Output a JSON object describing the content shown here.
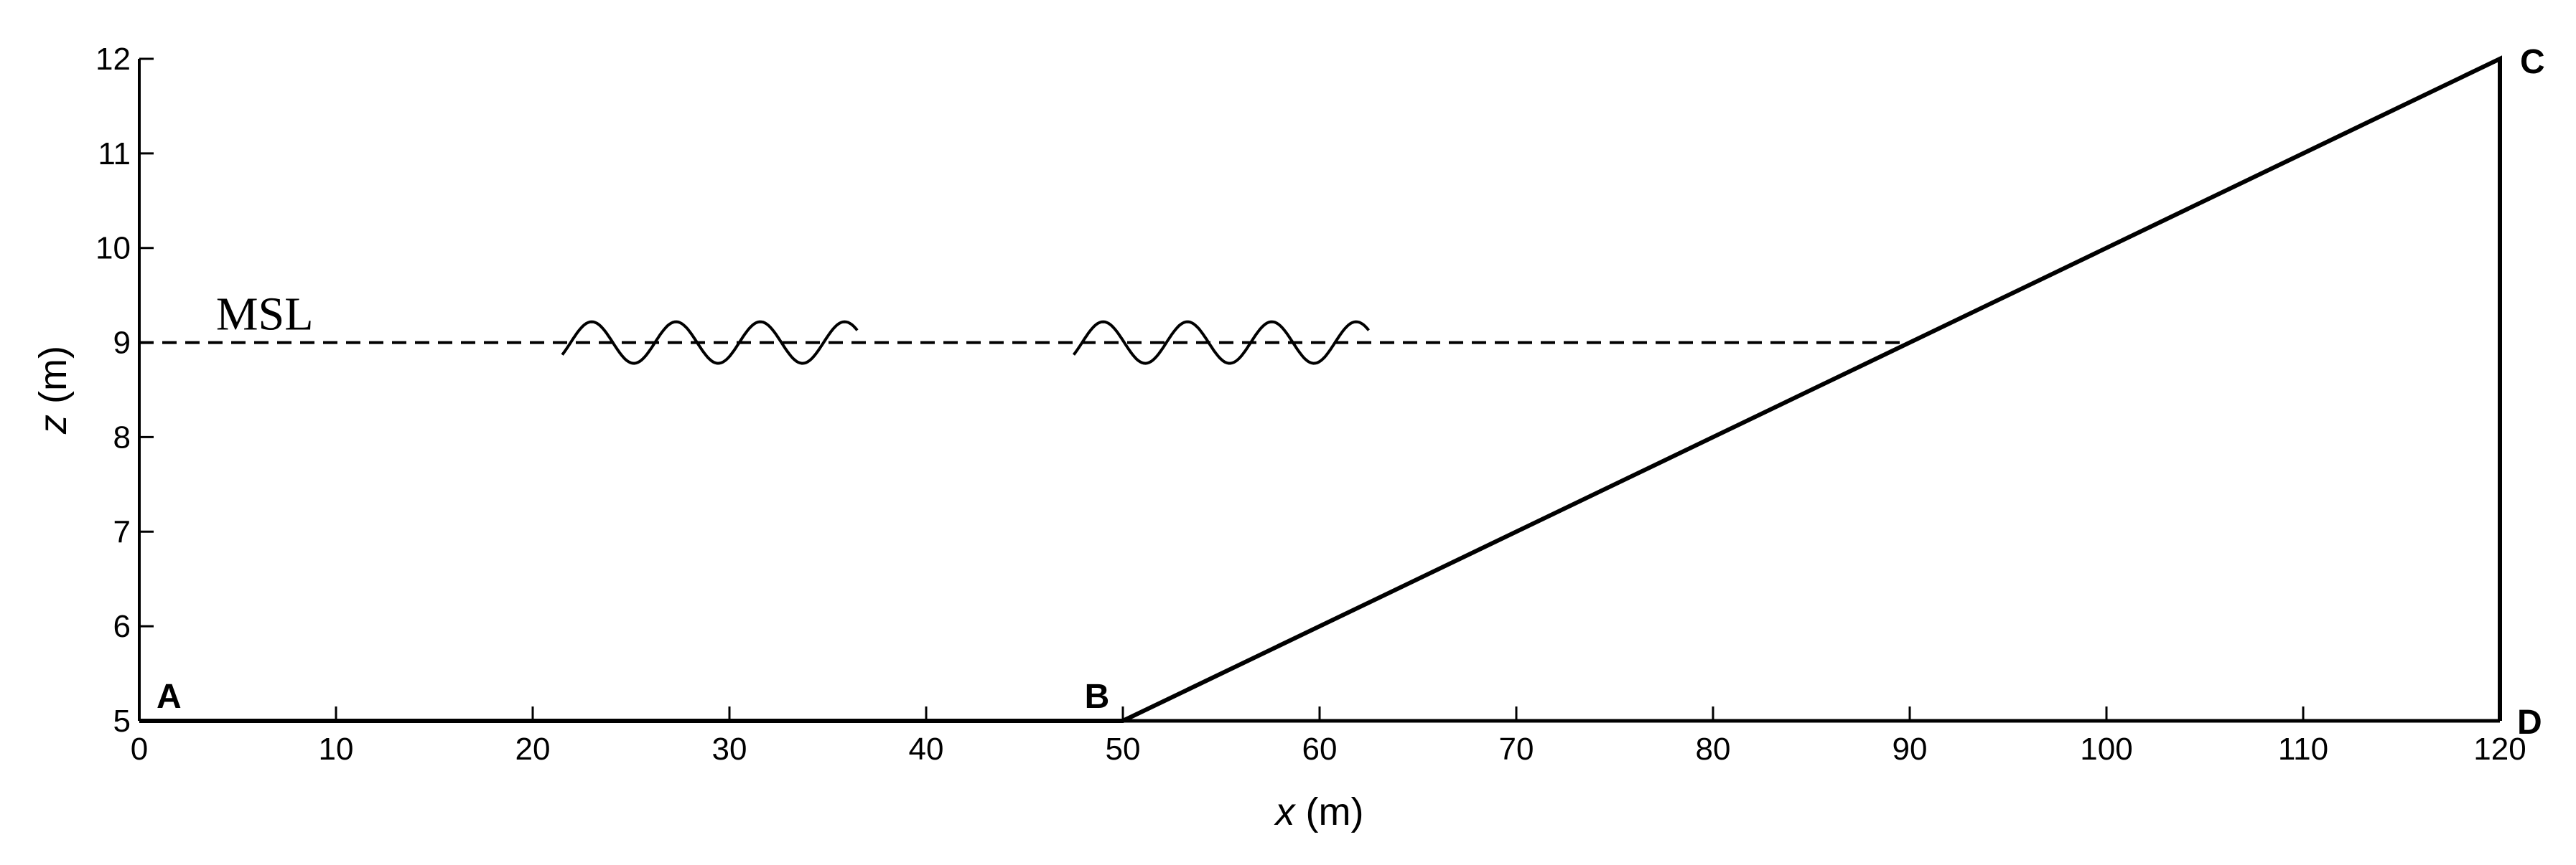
{
  "chart_data": {
    "type": "diagram",
    "xlabel": {
      "var": "x",
      "unit": " (m)"
    },
    "ylabel": {
      "var": "z",
      "unit": " (m)"
    },
    "xlim": [
      0,
      120
    ],
    "ylim": [
      5,
      12
    ],
    "x_ticks": [
      0,
      10,
      20,
      30,
      40,
      50,
      60,
      70,
      80,
      90,
      100,
      110,
      120
    ],
    "y_ticks": [
      5,
      6,
      7,
      8,
      9,
      10,
      11,
      12
    ],
    "profile": [
      [
        0,
        5
      ],
      [
        50,
        5
      ],
      [
        120,
        12
      ],
      [
        120,
        5
      ]
    ],
    "points": [
      {
        "label": "A",
        "x": 0,
        "y": 5
      },
      {
        "label": "B",
        "x": 50,
        "y": 5
      },
      {
        "label": "C",
        "x": 120,
        "y": 12
      },
      {
        "label": "D",
        "x": 120,
        "y": 5
      }
    ],
    "msl": {
      "label": "MSL",
      "z": 9,
      "x_start": 0,
      "x_end": 90
    },
    "waves": [
      {
        "x_start": 21.5,
        "x_end": 36.5,
        "z": 9,
        "amplitude": 0.22,
        "crests": 3
      },
      {
        "x_start": 47.5,
        "x_end": 62.5,
        "z": 9,
        "amplitude": 0.22,
        "crests": 3
      }
    ]
  }
}
